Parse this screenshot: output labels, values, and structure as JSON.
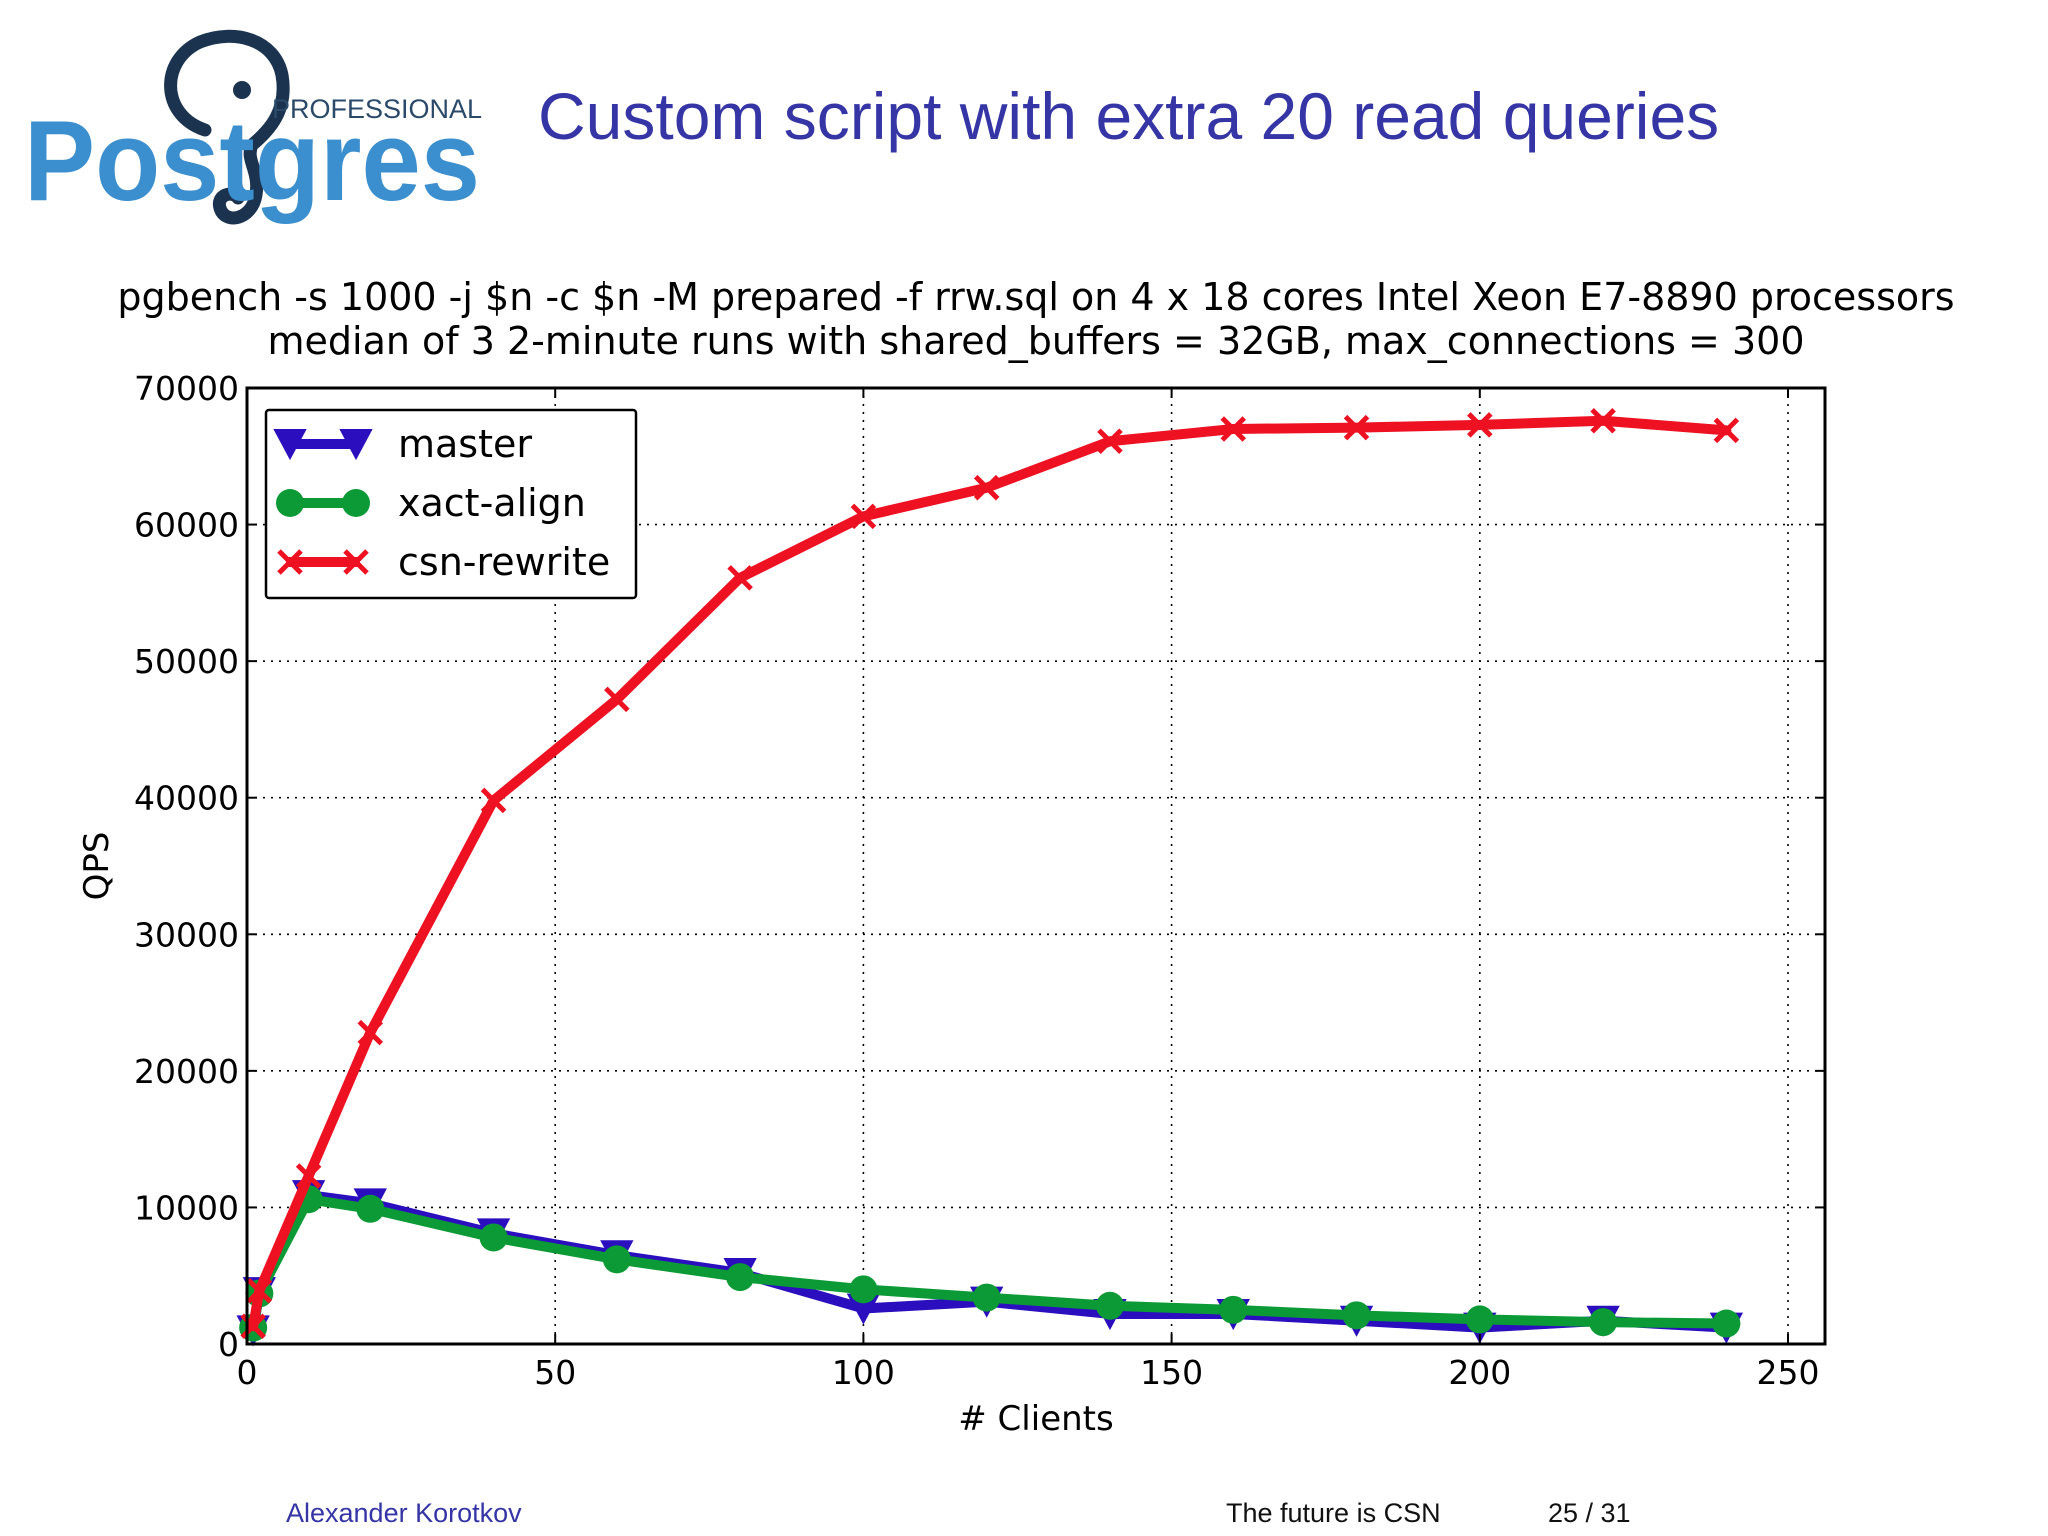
{
  "slide": {
    "title": "Custom script with extra 20 read queries",
    "logo_professional": "PROFESSIONAL",
    "logo_word": "Postgres"
  },
  "footer": {
    "author": "Alexander Korotkov",
    "talk": "The future is CSN",
    "page": "25 / 31"
  },
  "chart_data": {
    "type": "line",
    "title_lines": [
      "pgbench -s 1000 -j $n -c $n -M prepared -f rrw.sql on 4 x 18 cores Intel Xeon E7-8890 processors",
      "median of 3 2-minute runs with shared_buffers = 32GB, max_connections = 300"
    ],
    "xlabel": "# Clients",
    "ylabel": "QPS",
    "xlim": [
      0,
      256
    ],
    "ylim": [
      0,
      70000
    ],
    "xticks": [
      0,
      50,
      100,
      150,
      200,
      250
    ],
    "yticks": [
      0,
      10000,
      20000,
      30000,
      40000,
      50000,
      60000,
      70000
    ],
    "grid": true,
    "legend_position": "top-left",
    "x": [
      1,
      2,
      10,
      20,
      40,
      60,
      80,
      100,
      120,
      140,
      160,
      180,
      200,
      220,
      240
    ],
    "series": [
      {
        "name": "master",
        "color": "#2b0fbf",
        "marker": "triangle-down",
        "values": [
          1000,
          3800,
          10900,
          10300,
          8100,
          6500,
          5200,
          2600,
          3100,
          2200,
          2200,
          1700,
          1200,
          1700,
          1200
        ]
      },
      {
        "name": "xact-align",
        "color": "#0b9a35",
        "marker": "circle",
        "values": [
          1200,
          3700,
          10600,
          9900,
          7800,
          6200,
          4900,
          4000,
          3400,
          2800,
          2500,
          2100,
          1800,
          1600,
          1500
        ]
      },
      {
        "name": "csn-rewrite",
        "color": "#ee1122",
        "marker": "x",
        "values": [
          1300,
          3900,
          12300,
          22800,
          39800,
          47200,
          56100,
          60600,
          62700,
          66100,
          67000,
          67100,
          67300,
          67600,
          66900
        ]
      }
    ]
  }
}
